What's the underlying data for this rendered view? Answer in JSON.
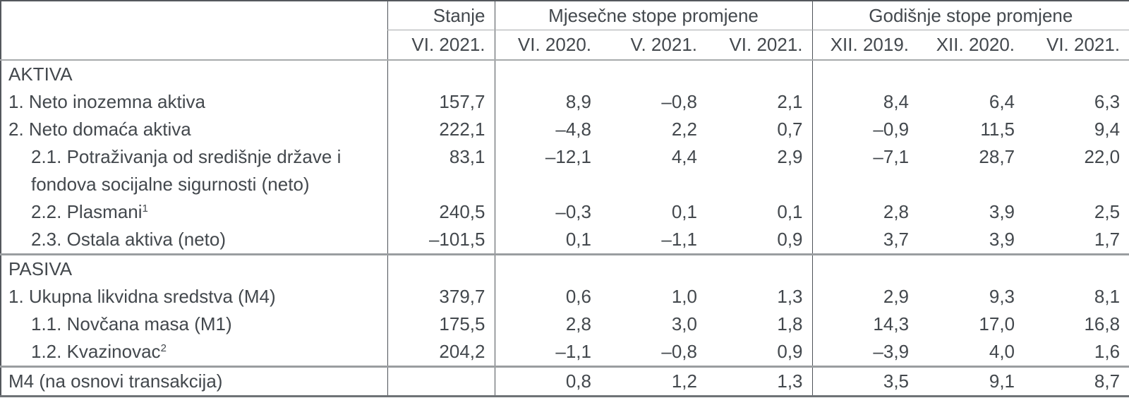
{
  "table": {
    "header": {
      "stanje": "Stanje",
      "monthly_group": "Mjesečne stope promjene",
      "yearly_group": "Godišnje stope promjene",
      "dates": [
        "VI. 2021.",
        "VI. 2020.",
        "V. 2021.",
        "VI. 2021.",
        "XII. 2019.",
        "XII. 2020.",
        "VI. 2021."
      ]
    },
    "rows": [
      {
        "label": "AKTIVA",
        "section": true,
        "values": [
          "",
          "",
          "",
          "",
          "",
          "",
          ""
        ]
      },
      {
        "label": "1. Neto inozemna aktiva",
        "values": [
          "157,7",
          "8,9",
          "–0,8",
          "2,1",
          "8,4",
          "6,4",
          "6,3"
        ]
      },
      {
        "label": "2. Neto domaća aktiva",
        "values": [
          "222,1",
          "–4,8",
          "2,2",
          "0,7",
          "–0,9",
          "11,5",
          "9,4"
        ]
      },
      {
        "label": "2.1. Potraživanja od središnje države i fondova socijalne sigurnosti (neto)",
        "indent": true,
        "values": [
          "83,1",
          "–12,1",
          "4,4",
          "2,9",
          "–7,1",
          "28,7",
          "22,0"
        ]
      },
      {
        "label": "2.2. Plasmani",
        "sup": "1",
        "indent": true,
        "values": [
          "240,5",
          "–0,3",
          "0,1",
          "0,1",
          "2,8",
          "3,9",
          "2,5"
        ]
      },
      {
        "label": "2.3. Ostala aktiva (neto)",
        "indent": true,
        "values": [
          "–101,5",
          "0,1",
          "–1,1",
          "0,9",
          "3,7",
          "3,9",
          "1,7"
        ]
      },
      {
        "label": "PASIVA",
        "section": true,
        "separator": true,
        "values": [
          "",
          "",
          "",
          "",
          "",
          "",
          ""
        ]
      },
      {
        "label": "1. Ukupna likvidna sredstva (M4)",
        "values": [
          "379,7",
          "0,6",
          "1,0",
          "1,3",
          "2,9",
          "9,3",
          "8,1"
        ]
      },
      {
        "label": "1.1. Novčana masa (M1)",
        "indent": true,
        "values": [
          "175,5",
          "2,8",
          "3,0",
          "1,8",
          "14,3",
          "17,0",
          "16,8"
        ]
      },
      {
        "label": "1.2. Kvazinovac",
        "sup": "2",
        "indent": true,
        "values": [
          "204,2",
          "–1,1",
          "–0,8",
          "0,9",
          "–3,9",
          "4,0",
          "1,6"
        ]
      },
      {
        "label": "M4 (na osnovi transakcija)",
        "separator": true,
        "values": [
          "",
          "0,8",
          "1,2",
          "1,3",
          "3,5",
          "9,1",
          "8,7"
        ]
      }
    ]
  }
}
